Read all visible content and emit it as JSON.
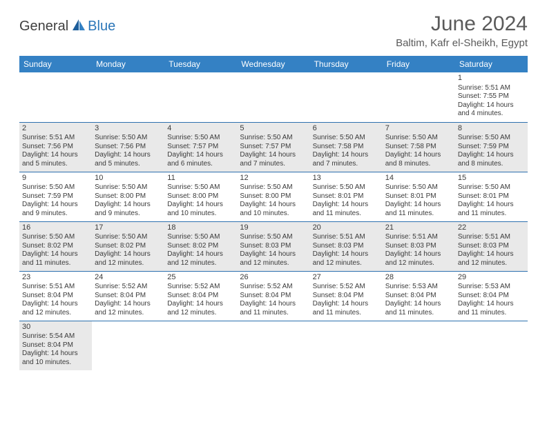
{
  "logo": {
    "general": "General",
    "blue": "Blue"
  },
  "title": "June 2024",
  "location": "Baltim, Kafr el-Sheikh, Egypt",
  "colors": {
    "header_bg": "#3481c4",
    "header_text": "#ffffff",
    "alt_row_bg": "#e9e9e9",
    "border": "#2b6fae",
    "logo_blue": "#2b76b8",
    "logo_gray": "#3f3f3f",
    "title_gray": "#5a5a5a"
  },
  "day_names": [
    "Sunday",
    "Monday",
    "Tuesday",
    "Wednesday",
    "Thursday",
    "Friday",
    "Saturday"
  ],
  "weeks": [
    [
      null,
      null,
      null,
      null,
      null,
      null,
      {
        "n": "1",
        "sr": "Sunrise: 5:51 AM",
        "ss": "Sunset: 7:55 PM",
        "d1": "Daylight: 14 hours",
        "d2": "and 4 minutes."
      }
    ],
    [
      {
        "n": "2",
        "sr": "Sunrise: 5:51 AM",
        "ss": "Sunset: 7:56 PM",
        "d1": "Daylight: 14 hours",
        "d2": "and 5 minutes."
      },
      {
        "n": "3",
        "sr": "Sunrise: 5:50 AM",
        "ss": "Sunset: 7:56 PM",
        "d1": "Daylight: 14 hours",
        "d2": "and 5 minutes."
      },
      {
        "n": "4",
        "sr": "Sunrise: 5:50 AM",
        "ss": "Sunset: 7:57 PM",
        "d1": "Daylight: 14 hours",
        "d2": "and 6 minutes."
      },
      {
        "n": "5",
        "sr": "Sunrise: 5:50 AM",
        "ss": "Sunset: 7:57 PM",
        "d1": "Daylight: 14 hours",
        "d2": "and 7 minutes."
      },
      {
        "n": "6",
        "sr": "Sunrise: 5:50 AM",
        "ss": "Sunset: 7:58 PM",
        "d1": "Daylight: 14 hours",
        "d2": "and 7 minutes."
      },
      {
        "n": "7",
        "sr": "Sunrise: 5:50 AM",
        "ss": "Sunset: 7:58 PM",
        "d1": "Daylight: 14 hours",
        "d2": "and 8 minutes."
      },
      {
        "n": "8",
        "sr": "Sunrise: 5:50 AM",
        "ss": "Sunset: 7:59 PM",
        "d1": "Daylight: 14 hours",
        "d2": "and 8 minutes."
      }
    ],
    [
      {
        "n": "9",
        "sr": "Sunrise: 5:50 AM",
        "ss": "Sunset: 7:59 PM",
        "d1": "Daylight: 14 hours",
        "d2": "and 9 minutes."
      },
      {
        "n": "10",
        "sr": "Sunrise: 5:50 AM",
        "ss": "Sunset: 8:00 PM",
        "d1": "Daylight: 14 hours",
        "d2": "and 9 minutes."
      },
      {
        "n": "11",
        "sr": "Sunrise: 5:50 AM",
        "ss": "Sunset: 8:00 PM",
        "d1": "Daylight: 14 hours",
        "d2": "and 10 minutes."
      },
      {
        "n": "12",
        "sr": "Sunrise: 5:50 AM",
        "ss": "Sunset: 8:00 PM",
        "d1": "Daylight: 14 hours",
        "d2": "and 10 minutes."
      },
      {
        "n": "13",
        "sr": "Sunrise: 5:50 AM",
        "ss": "Sunset: 8:01 PM",
        "d1": "Daylight: 14 hours",
        "d2": "and 11 minutes."
      },
      {
        "n": "14",
        "sr": "Sunrise: 5:50 AM",
        "ss": "Sunset: 8:01 PM",
        "d1": "Daylight: 14 hours",
        "d2": "and 11 minutes."
      },
      {
        "n": "15",
        "sr": "Sunrise: 5:50 AM",
        "ss": "Sunset: 8:01 PM",
        "d1": "Daylight: 14 hours",
        "d2": "and 11 minutes."
      }
    ],
    [
      {
        "n": "16",
        "sr": "Sunrise: 5:50 AM",
        "ss": "Sunset: 8:02 PM",
        "d1": "Daylight: 14 hours",
        "d2": "and 11 minutes."
      },
      {
        "n": "17",
        "sr": "Sunrise: 5:50 AM",
        "ss": "Sunset: 8:02 PM",
        "d1": "Daylight: 14 hours",
        "d2": "and 12 minutes."
      },
      {
        "n": "18",
        "sr": "Sunrise: 5:50 AM",
        "ss": "Sunset: 8:02 PM",
        "d1": "Daylight: 14 hours",
        "d2": "and 12 minutes."
      },
      {
        "n": "19",
        "sr": "Sunrise: 5:50 AM",
        "ss": "Sunset: 8:03 PM",
        "d1": "Daylight: 14 hours",
        "d2": "and 12 minutes."
      },
      {
        "n": "20",
        "sr": "Sunrise: 5:51 AM",
        "ss": "Sunset: 8:03 PM",
        "d1": "Daylight: 14 hours",
        "d2": "and 12 minutes."
      },
      {
        "n": "21",
        "sr": "Sunrise: 5:51 AM",
        "ss": "Sunset: 8:03 PM",
        "d1": "Daylight: 14 hours",
        "d2": "and 12 minutes."
      },
      {
        "n": "22",
        "sr": "Sunrise: 5:51 AM",
        "ss": "Sunset: 8:03 PM",
        "d1": "Daylight: 14 hours",
        "d2": "and 12 minutes."
      }
    ],
    [
      {
        "n": "23",
        "sr": "Sunrise: 5:51 AM",
        "ss": "Sunset: 8:04 PM",
        "d1": "Daylight: 14 hours",
        "d2": "and 12 minutes."
      },
      {
        "n": "24",
        "sr": "Sunrise: 5:52 AM",
        "ss": "Sunset: 8:04 PM",
        "d1": "Daylight: 14 hours",
        "d2": "and 12 minutes."
      },
      {
        "n": "25",
        "sr": "Sunrise: 5:52 AM",
        "ss": "Sunset: 8:04 PM",
        "d1": "Daylight: 14 hours",
        "d2": "and 12 minutes."
      },
      {
        "n": "26",
        "sr": "Sunrise: 5:52 AM",
        "ss": "Sunset: 8:04 PM",
        "d1": "Daylight: 14 hours",
        "d2": "and 11 minutes."
      },
      {
        "n": "27",
        "sr": "Sunrise: 5:52 AM",
        "ss": "Sunset: 8:04 PM",
        "d1": "Daylight: 14 hours",
        "d2": "and 11 minutes."
      },
      {
        "n": "28",
        "sr": "Sunrise: 5:53 AM",
        "ss": "Sunset: 8:04 PM",
        "d1": "Daylight: 14 hours",
        "d2": "and 11 minutes."
      },
      {
        "n": "29",
        "sr": "Sunrise: 5:53 AM",
        "ss": "Sunset: 8:04 PM",
        "d1": "Daylight: 14 hours",
        "d2": "and 11 minutes."
      }
    ],
    [
      {
        "n": "30",
        "sr": "Sunrise: 5:54 AM",
        "ss": "Sunset: 8:04 PM",
        "d1": "Daylight: 14 hours",
        "d2": "and 10 minutes."
      },
      null,
      null,
      null,
      null,
      null,
      null
    ]
  ]
}
